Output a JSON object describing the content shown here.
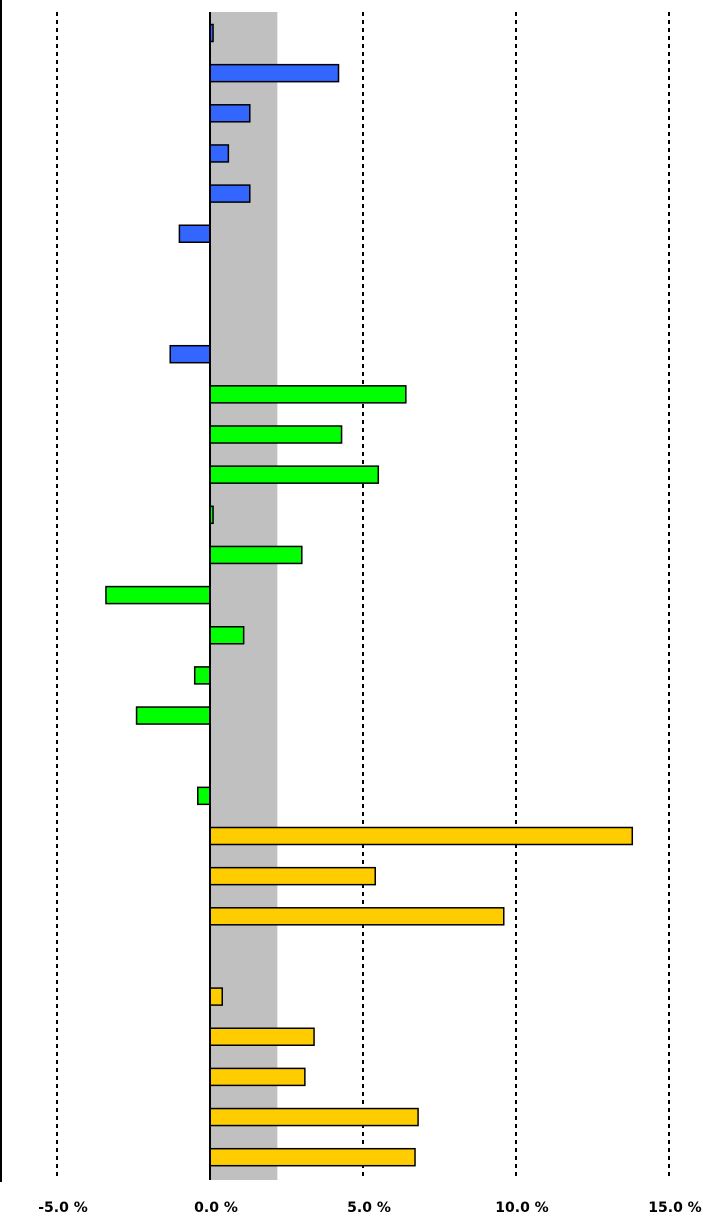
{
  "chart_data": {
    "type": "bar",
    "orientation": "horizontal",
    "title": "",
    "xlabel": "",
    "ylabel": "",
    "xlim": [
      -5.0,
      15.0
    ],
    "x_ticks": [
      -5.0,
      0.0,
      5.0,
      10.0,
      15.0
    ],
    "x_tick_labels": [
      "-5.0 %",
      "0.0 %",
      "5.0 %",
      "10.0 %",
      "15.0 %"
    ],
    "grid": "vertical dashed",
    "shaded_band": [
      0.0,
      2.2
    ],
    "colors": {
      "blue": "#3366ff",
      "green": "#00ff00",
      "orange": "#ffcc00",
      "band": "#c0c0c0",
      "grid": "#000000",
      "frame": "#000000"
    },
    "bars": [
      {
        "value": 0.1,
        "color": "blue"
      },
      {
        "value": 4.2,
        "color": "blue"
      },
      {
        "value": 1.3,
        "color": "blue"
      },
      {
        "value": 0.6,
        "color": "blue"
      },
      {
        "value": 1.3,
        "color": "blue"
      },
      {
        "value": -1.0,
        "color": "blue"
      },
      {
        "value": null,
        "color": "blue"
      },
      {
        "value": null,
        "color": "blue"
      },
      {
        "value": -1.3,
        "color": "blue"
      },
      {
        "value": 6.4,
        "color": "green"
      },
      {
        "value": 4.3,
        "color": "green"
      },
      {
        "value": 5.5,
        "color": "green"
      },
      {
        "value": 0.1,
        "color": "green"
      },
      {
        "value": 3.0,
        "color": "green"
      },
      {
        "value": -3.4,
        "color": "green"
      },
      {
        "value": 1.1,
        "color": "green"
      },
      {
        "value": -0.5,
        "color": "green"
      },
      {
        "value": -2.4,
        "color": "green"
      },
      {
        "value": null,
        "color": "green"
      },
      {
        "value": -0.4,
        "color": "green"
      },
      {
        "value": 13.8,
        "color": "orange"
      },
      {
        "value": 5.4,
        "color": "orange"
      },
      {
        "value": 9.6,
        "color": "orange"
      },
      {
        "value": null,
        "color": "orange"
      },
      {
        "value": 0.4,
        "color": "orange"
      },
      {
        "value": 3.4,
        "color": "orange"
      },
      {
        "value": 3.1,
        "color": "orange"
      },
      {
        "value": 6.8,
        "color": "orange"
      },
      {
        "value": 6.7,
        "color": "orange"
      }
    ]
  }
}
